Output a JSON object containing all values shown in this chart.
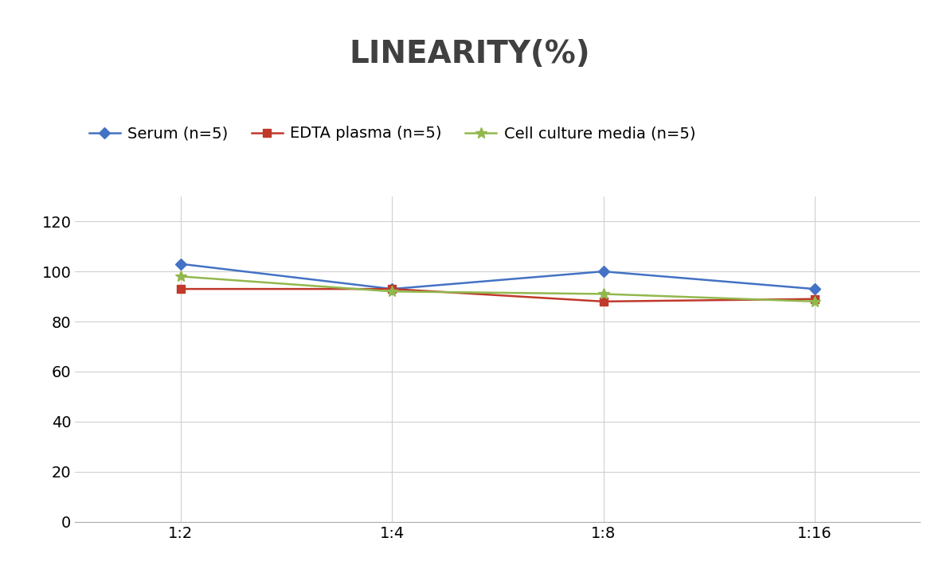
{
  "title": "LINEARITY(%)",
  "x_labels": [
    "1:2",
    "1:4",
    "1:8",
    "1:16"
  ],
  "x_positions": [
    0,
    1,
    2,
    3
  ],
  "series": [
    {
      "label": "Serum (n=5)",
      "values": [
        103,
        93,
        100,
        93
      ],
      "color": "#4472C4",
      "marker": "D",
      "marker_size": 7,
      "linewidth": 1.8
    },
    {
      "label": "EDTA plasma (n=5)",
      "values": [
        93,
        93,
        88,
        89
      ],
      "color": "#C0392B",
      "marker": "s",
      "marker_size": 7,
      "linewidth": 1.8
    },
    {
      "label": "Cell culture media (n=5)",
      "values": [
        98,
        92,
        91,
        88
      ],
      "color": "#92B84D",
      "marker": "*",
      "marker_size": 10,
      "linewidth": 1.8
    }
  ],
  "ylim": [
    0,
    130
  ],
  "yticks": [
    0,
    20,
    40,
    60,
    80,
    100,
    120
  ],
  "title_fontsize": 28,
  "title_color": "#404040",
  "legend_fontsize": 14,
  "tick_fontsize": 14,
  "background_color": "#ffffff",
  "grid_color": "#d0d0d0"
}
